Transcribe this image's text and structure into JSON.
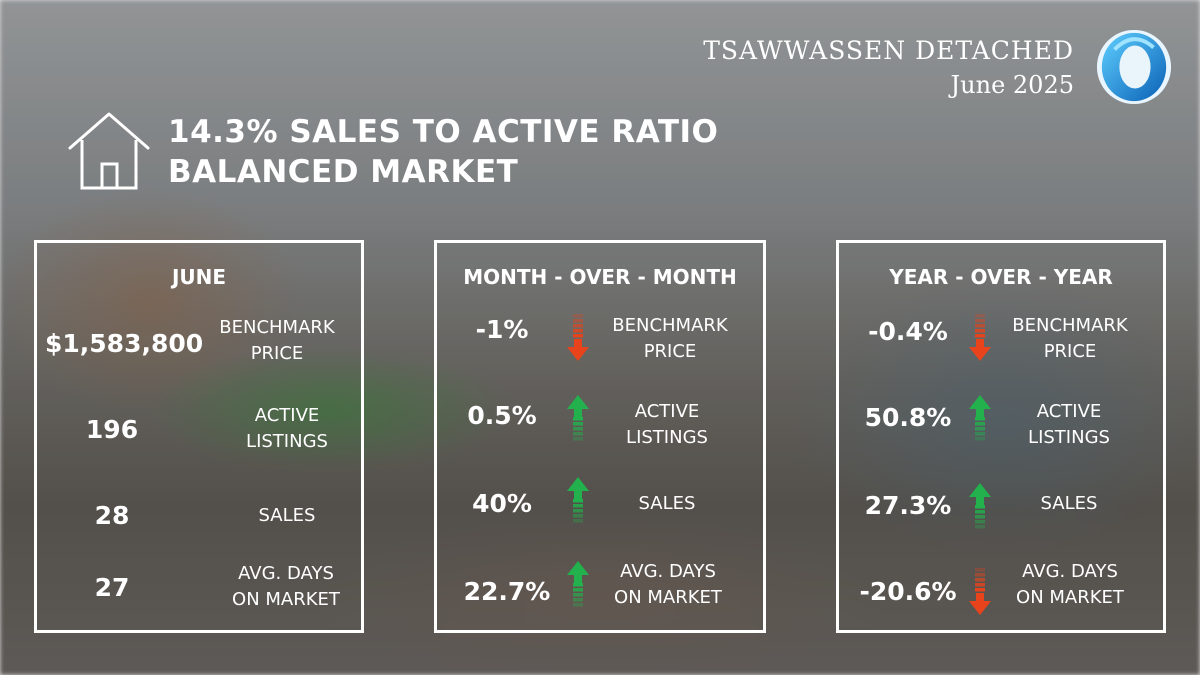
{
  "brand": {
    "title": "TSAWWASSEN DETACHED",
    "date": "June 2025",
    "logo_icon": "blue-ring-logo"
  },
  "headline": {
    "icon": "house-icon",
    "line1": "14.3% SALES TO ACTIVE RATIO",
    "line2": "BALANCED MARKET"
  },
  "colors": {
    "up": "#22b14c",
    "down": "#e8431b",
    "panel_border": "#ffffff"
  },
  "panels": [
    {
      "title": "JUNE",
      "rows": [
        {
          "value": "$1,583,800",
          "label1": "BENCHMARK",
          "label2": "PRICE"
        },
        {
          "value": "196",
          "label1": "ACTIVE",
          "label2": "LISTINGS"
        },
        {
          "value": "28",
          "label1": "SALES",
          "label2": ""
        },
        {
          "value": "27",
          "label1": "AVG. DAYS",
          "label2": "ON MARKET"
        }
      ]
    },
    {
      "title": "MONTH - OVER - MONTH",
      "rows": [
        {
          "value": "-1%",
          "direction": "down",
          "label1": "BENCHMARK",
          "label2": "PRICE"
        },
        {
          "value": "0.5%",
          "direction": "up",
          "label1": "ACTIVE",
          "label2": "LISTINGS"
        },
        {
          "value": "40%",
          "direction": "up",
          "label1": "SALES",
          "label2": ""
        },
        {
          "value": "22.7%",
          "direction": "up",
          "label1": "AVG. DAYS",
          "label2": "ON MARKET"
        }
      ]
    },
    {
      "title": "YEAR - OVER - YEAR",
      "rows": [
        {
          "value": "-0.4%",
          "direction": "down",
          "label1": "BENCHMARK",
          "label2": "PRICE"
        },
        {
          "value": "50.8%",
          "direction": "up",
          "label1": "ACTIVE",
          "label2": "LISTINGS"
        },
        {
          "value": "27.3%",
          "direction": "up",
          "label1": "SALES",
          "label2": ""
        },
        {
          "value": "-20.6%",
          "direction": "down",
          "label1": "AVG. DAYS",
          "label2": "ON MARKET"
        }
      ]
    }
  ]
}
